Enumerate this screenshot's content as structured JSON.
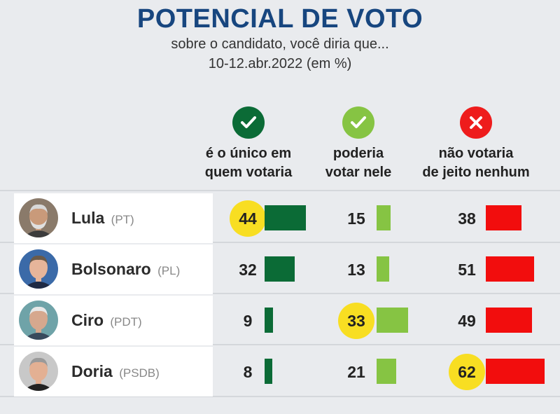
{
  "title": "POTENCIAL DE VOTO",
  "subtitle": "sobre o candidato, você diria que...",
  "subtitle2": "10-12.abr.2022 (em %)",
  "chart_data": {
    "type": "table",
    "columns": [
      {
        "line1": "é o único em",
        "line2": "quem votaria",
        "icon": "check-icon",
        "color": "#0b6b36",
        "icon_color": "#0b6b36"
      },
      {
        "line1": "poderia",
        "line2": "votar nele",
        "icon": "check-icon",
        "color": "#86c443",
        "icon_color": "#86c443"
      },
      {
        "line1": "não votaria",
        "line2": "de jeito nenhum",
        "icon": "x-icon",
        "color": "#f20d0d",
        "icon_color": "#ee1c1c"
      }
    ],
    "highlight_color": "#f8de22",
    "rows": [
      {
        "name": "Lula",
        "party": "(PT)",
        "values": [
          44,
          15,
          38
        ],
        "highlight": 0
      },
      {
        "name": "Bolsonaro",
        "party": "(PL)",
        "values": [
          32,
          13,
          51
        ],
        "highlight": null
      },
      {
        "name": "Ciro",
        "party": "(PDT)",
        "values": [
          9,
          33,
          49
        ],
        "highlight": 1
      },
      {
        "name": "Doria",
        "party": "(PSDB)",
        "values": [
          8,
          21,
          62
        ],
        "highlight": 2
      }
    ]
  }
}
